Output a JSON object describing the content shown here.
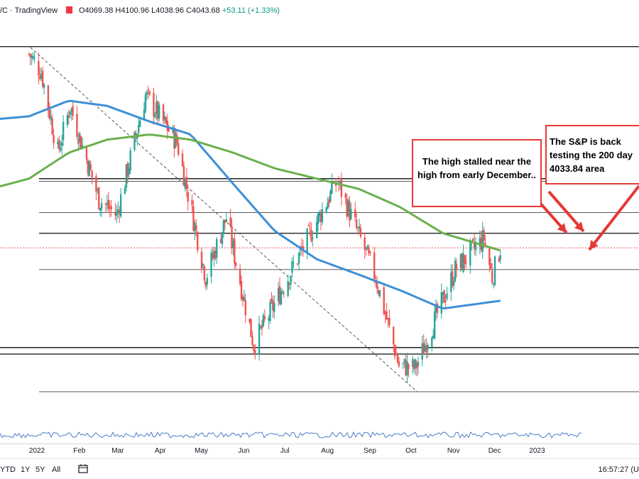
{
  "header": {
    "title": "/C · TradingView",
    "ohlc": "O4069.38 H4100.96 L4038.96 C4043.68",
    "change": "+53.11 (+1.33%)"
  },
  "callouts": [
    {
      "text": "The high stalled near the high from early December.."
    },
    {
      "text": "The S&P is back testing the 200 day 4033.84 area"
    }
  ],
  "bottombar": {
    "ranges": [
      "YTD",
      "1Y",
      "5Y",
      "All"
    ],
    "time": "16:57:27 (U"
  },
  "colors": {
    "up": "#26a69a",
    "down": "#ef5350",
    "ma100": "#3d8fd6",
    "ma200": "#6ab04c",
    "annotation": "#e53935"
  },
  "chart_data": {
    "type": "candlestick",
    "x_tick_labels": [
      "2022",
      "Feb",
      "Mar",
      "Apr",
      "May",
      "Jun",
      "Jul",
      "Aug",
      "Sep",
      "Oct",
      "Nov",
      "Dec",
      "2023"
    ],
    "price_range": [
      3490,
      4820
    ],
    "close_path": [
      {
        "x": "2022-01-03",
        "y": 4790
      },
      {
        "x": "2022-01-12",
        "y": 4720
      },
      {
        "x": "2022-01-24",
        "y": 4410
      },
      {
        "x": "2022-02-02",
        "y": 4590
      },
      {
        "x": "2022-02-23",
        "y": 4230
      },
      {
        "x": "2022-03-08",
        "y": 4170
      },
      {
        "x": "2022-03-29",
        "y": 4630
      },
      {
        "x": "2022-04-21",
        "y": 4450
      },
      {
        "x": "2022-05-12",
        "y": 3930
      },
      {
        "x": "2022-05-27",
        "y": 4160
      },
      {
        "x": "2022-06-16",
        "y": 3670
      },
      {
        "x": "2022-07-08",
        "y": 3900
      },
      {
        "x": "2022-08-16",
        "y": 4300
      },
      {
        "x": "2022-09-13",
        "y": 3930
      },
      {
        "x": "2022-09-30",
        "y": 3590
      },
      {
        "x": "2022-10-12",
        "y": 3580
      },
      {
        "x": "2022-11-10",
        "y": 3960
      },
      {
        "x": "2022-12-01",
        "y": 4080
      },
      {
        "x": "2022-12-07",
        "y": 3930
      },
      {
        "x": "2022-12-13",
        "y": 4043.68
      }
    ],
    "ma100_path": [
      {
        "x": "2022-01-03",
        "y": 4550
      },
      {
        "x": "2022-02-01",
        "y": 4610
      },
      {
        "x": "2022-03-01",
        "y": 4590
      },
      {
        "x": "2022-04-01",
        "y": 4530
      },
      {
        "x": "2022-05-01",
        "y": 4480
      },
      {
        "x": "2022-06-01",
        "y": 4290
      },
      {
        "x": "2022-07-01",
        "y": 4110
      },
      {
        "x": "2022-08-01",
        "y": 4000
      },
      {
        "x": "2022-09-01",
        "y": 3940
      },
      {
        "x": "2022-10-01",
        "y": 3880
      },
      {
        "x": "2022-11-01",
        "y": 3810
      },
      {
        "x": "2022-12-13",
        "y": 3840
      }
    ],
    "ma200_path": [
      {
        "x": "2022-01-03",
        "y": 4310
      },
      {
        "x": "2022-02-01",
        "y": 4410
      },
      {
        "x": "2022-03-01",
        "y": 4460
      },
      {
        "x": "2022-04-01",
        "y": 4480
      },
      {
        "x": "2022-05-01",
        "y": 4460
      },
      {
        "x": "2022-06-01",
        "y": 4410
      },
      {
        "x": "2022-07-01",
        "y": 4350
      },
      {
        "x": "2022-08-01",
        "y": 4310
      },
      {
        "x": "2022-09-01",
        "y": 4270
      },
      {
        "x": "2022-10-01",
        "y": 4200
      },
      {
        "x": "2022-11-01",
        "y": 4100
      },
      {
        "x": "2022-12-13",
        "y": 4033.84
      }
    ],
    "horizontal_levels": [
      4818,
      4310,
      4300,
      4180,
      4100,
      3960,
      3660,
      3635,
      3490
    ],
    "current_price_level": 4043.68,
    "trendline": [
      {
        "x": "2022-01-04",
        "y": 4815
      },
      {
        "x": "2022-10-13",
        "y": 3491
      }
    ]
  }
}
